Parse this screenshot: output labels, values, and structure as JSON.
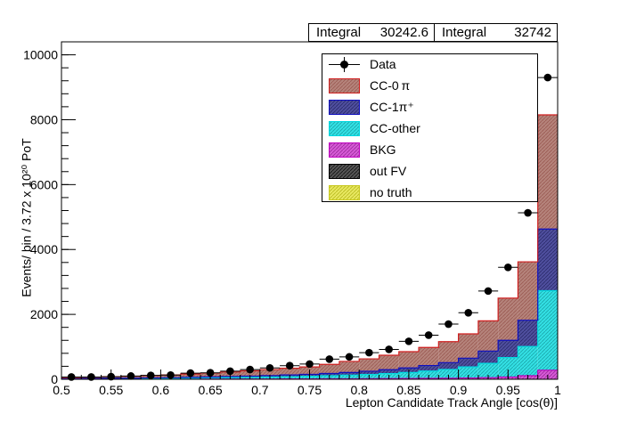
{
  "stats": [
    {
      "label": "Integral",
      "value": "30242.6"
    },
    {
      "label": "Integral",
      "value": "32742"
    }
  ],
  "legend": [
    {
      "label": "Data",
      "key": "data"
    },
    {
      "label": "CC-0 π",
      "key": "cc0pi"
    },
    {
      "label": "CC-1π⁺",
      "key": "cc1pi"
    },
    {
      "label": "CC-other",
      "key": "ccother"
    },
    {
      "label": "BKG",
      "key": "bkg"
    },
    {
      "label": "out FV",
      "key": "outfv"
    },
    {
      "label": "no truth",
      "key": "notruth"
    }
  ],
  "colors": {
    "cc0pi": "#b5837b",
    "cc0pi_edge": "#d02020",
    "cc1pi": "#4f4f9e",
    "cc1pi_edge": "#1010c0",
    "ccother": "#33e0e4",
    "ccother_edge": "#00d8e0",
    "bkg": "#d65ad6",
    "bkg_edge": "#c000c0",
    "outfv": "#555555",
    "notruth": "#e8e860"
  },
  "chart_data": {
    "type": "bar",
    "stacked": true,
    "xlabel": "Lepton Candidate Track Angle [cos(θ)]",
    "ylabel": "Events/ bin / 3.72 x 10²⁰ PoT",
    "xlim": [
      0.5,
      1.0
    ],
    "ylim": [
      0,
      10400
    ],
    "x_ticks": [
      "0.5",
      "0.55",
      "0.6",
      "0.65",
      "0.7",
      "0.75",
      "0.8",
      "0.85",
      "0.9",
      "0.95",
      "1"
    ],
    "y_ticks": [
      "0",
      "2000",
      "4000",
      "6000",
      "8000",
      "10000"
    ],
    "bin_edges": [
      0.5,
      0.52,
      0.54,
      0.56,
      0.58,
      0.6,
      0.62,
      0.64,
      0.66,
      0.68,
      0.7,
      0.72,
      0.74,
      0.76,
      0.78,
      0.8,
      0.82,
      0.84,
      0.86,
      0.88,
      0.9,
      0.92,
      0.94,
      0.96,
      0.98,
      1.0
    ],
    "series": [
      {
        "name": "BKG",
        "values": [
          2,
          2,
          3,
          3,
          4,
          4,
          5,
          6,
          7,
          8,
          9,
          11,
          12,
          14,
          16,
          18,
          21,
          24,
          28,
          33,
          40,
          50,
          70,
          110,
          280
        ]
      },
      {
        "name": "CC-other",
        "values": [
          10,
          12,
          15,
          18,
          22,
          26,
          32,
          38,
          45,
          52,
          60,
          70,
          80,
          95,
          110,
          130,
          155,
          185,
          225,
          270,
          340,
          440,
          600,
          900,
          2450
        ]
      },
      {
        "name": "CC-1π⁺",
        "values": [
          7,
          9,
          12,
          14,
          17,
          20,
          24,
          28,
          33,
          38,
          45,
          52,
          60,
          70,
          84,
          100,
          120,
          140,
          170,
          210,
          270,
          380,
          530,
          810,
          1900
        ]
      },
      {
        "name": "CC-0 π",
        "values": [
          35,
          42,
          50,
          60,
          72,
          85,
          100,
          118,
          140,
          162,
          186,
          207,
          228,
          281,
          340,
          382,
          444,
          501,
          557,
          647,
          750,
          930,
          1300,
          1800,
          3520
        ]
      }
    ],
    "data": {
      "name": "Data",
      "x": [
        0.51,
        0.53,
        0.55,
        0.57,
        0.59,
        0.61,
        0.63,
        0.65,
        0.67,
        0.69,
        0.71,
        0.73,
        0.75,
        0.77,
        0.79,
        0.81,
        0.83,
        0.85,
        0.87,
        0.89,
        0.91,
        0.93,
        0.95,
        0.97,
        0.99
      ],
      "y": [
        70,
        70,
        80,
        100,
        120,
        130,
        190,
        200,
        250,
        300,
        350,
        420,
        470,
        620,
        690,
        820,
        920,
        1170,
        1360,
        1700,
        2050,
        2720,
        3450,
        5130,
        9300
      ]
    }
  }
}
